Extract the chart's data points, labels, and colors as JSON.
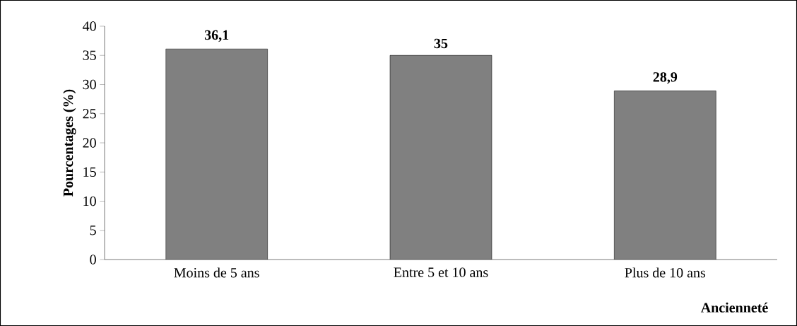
{
  "chart_data": {
    "type": "bar",
    "xlabel": "Ancienneté",
    "ylabel": "Pourcentages (%)",
    "categories": [
      "Moins de 5 ans",
      "Entre 5 et 10 ans",
      "Plus de 10 ans"
    ],
    "values": [
      36.1,
      35,
      28.9
    ],
    "value_labels": [
      "36,1",
      "35",
      "28,9"
    ],
    "color": "#808080",
    "ylim": [
      0,
      40
    ],
    "yticks": [
      0,
      5,
      10,
      15,
      20,
      25,
      30,
      35,
      40
    ]
  }
}
